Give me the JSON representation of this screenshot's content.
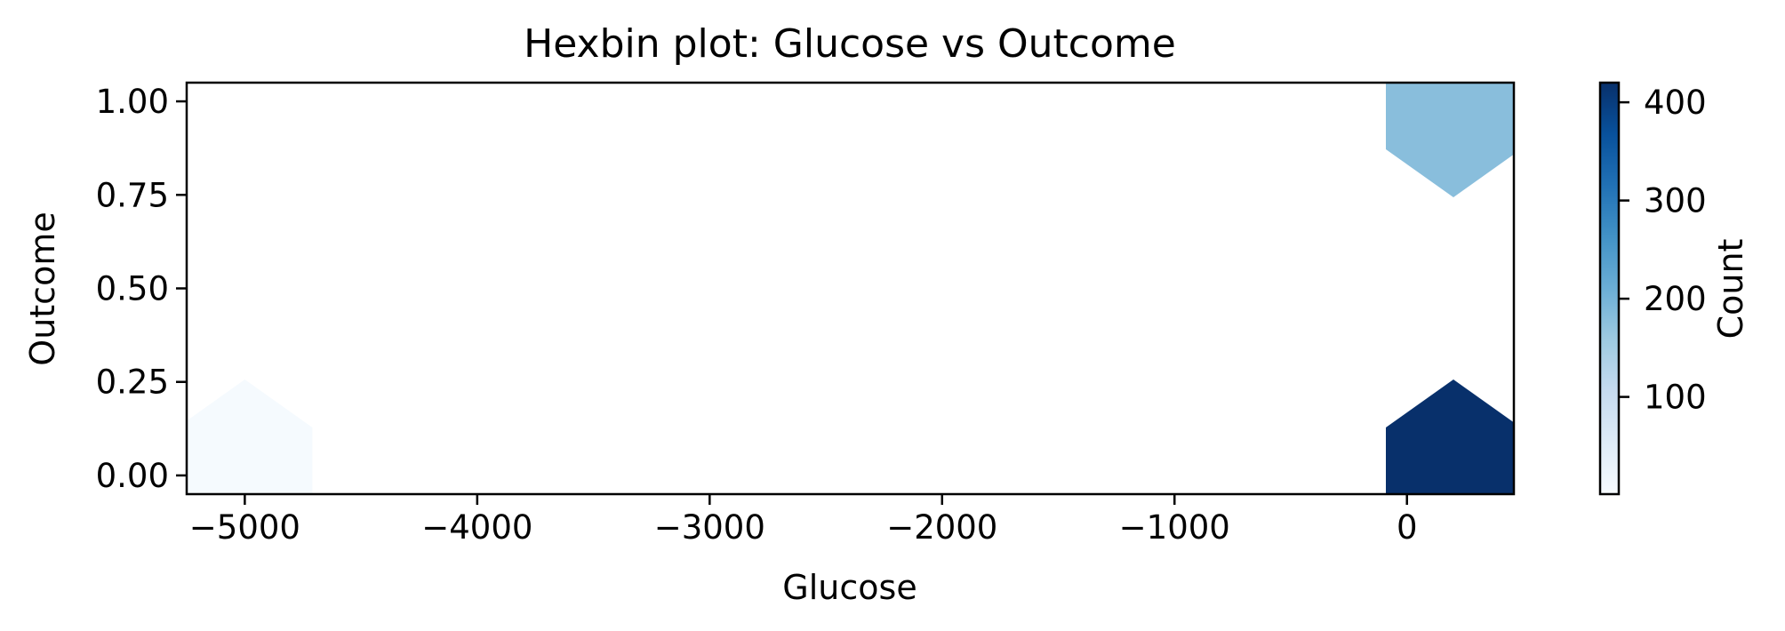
{
  "chart_data": {
    "type": "hexbin",
    "title": "Hexbin plot: Glucose vs Outcome",
    "xlabel": "Glucose",
    "ylabel": "Outcome",
    "xlim": [
      -5250,
      460
    ],
    "ylim": [
      -0.05,
      1.05
    ],
    "x_ticks": [
      -5000,
      -4000,
      -3000,
      -2000,
      -1000,
      0
    ],
    "x_tick_labels": [
      "−5000",
      "−4000",
      "−3000",
      "−2000",
      "−1000",
      "0"
    ],
    "y_ticks": [
      0.0,
      0.25,
      0.5,
      0.75,
      1.0
    ],
    "y_tick_labels": [
      "0.00",
      "0.25",
      "0.50",
      "0.75",
      "1.00"
    ],
    "grid": false,
    "colormap": "Blues",
    "colormap_stops": [
      "#f7fbff",
      "#deebf7",
      "#c6dbef",
      "#9ecae1",
      "#6baed6",
      "#4292c6",
      "#2171b5",
      "#08519c",
      "#08306b"
    ],
    "bins": [
      {
        "x": -5000,
        "y": 0.0,
        "count": 5
      },
      {
        "x": 200,
        "y": 0.0,
        "count": 420
      },
      {
        "x": 200,
        "y": 1.0,
        "count": 180
      }
    ],
    "colorbar": {
      "label": "Count",
      "min": 1,
      "max": 420,
      "ticks": [
        100,
        200,
        300,
        400
      ],
      "tick_labels": [
        "100",
        "200",
        "300",
        "400"
      ]
    }
  }
}
